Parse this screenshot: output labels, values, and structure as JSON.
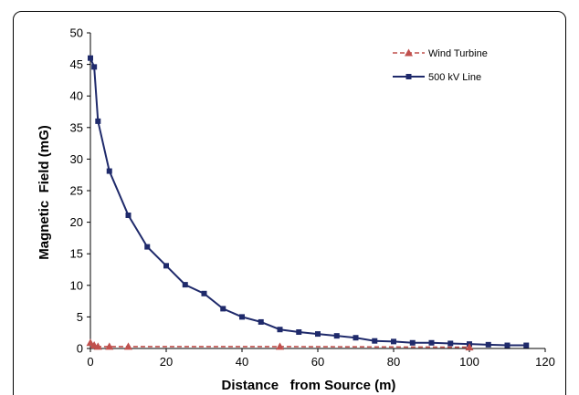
{
  "chart_data": {
    "type": "line",
    "title": "",
    "xlabel": "Distance   from Source (m)",
    "ylabel": "Magnetic  Field (mG)",
    "xlim": [
      0,
      120
    ],
    "ylim": [
      0,
      50
    ],
    "xticks": [
      0,
      20,
      40,
      60,
      80,
      100,
      120
    ],
    "yticks": [
      0,
      5,
      10,
      15,
      20,
      25,
      30,
      35,
      40,
      45,
      50
    ],
    "grid": false,
    "legend_position": "top-right",
    "series": [
      {
        "name": "Wind Turbine",
        "color": "#c0504d",
        "line_style": "dashed",
        "marker": "triangle",
        "x": [
          0,
          1,
          2,
          5,
          10,
          50,
          100
        ],
        "y": [
          0.9,
          0.5,
          0.3,
          0.3,
          0.3,
          0.3,
          0.2
        ]
      },
      {
        "name": "500 kV Line",
        "color": "#1f2a6b",
        "line_style": "solid",
        "marker": "square",
        "x": [
          0,
          1,
          2,
          5,
          10,
          15,
          20,
          25,
          30,
          35,
          40,
          45,
          50,
          55,
          60,
          65,
          70,
          75,
          80,
          85,
          90,
          95,
          100,
          105,
          110,
          115
        ],
        "y": [
          46,
          44.6,
          36,
          28.1,
          21.1,
          16.1,
          13.1,
          10.1,
          8.7,
          6.3,
          5.0,
          4.2,
          3.0,
          2.6,
          2.3,
          2.0,
          1.7,
          1.2,
          1.1,
          0.9,
          0.9,
          0.8,
          0.7,
          0.6,
          0.5,
          0.5
        ]
      }
    ]
  }
}
